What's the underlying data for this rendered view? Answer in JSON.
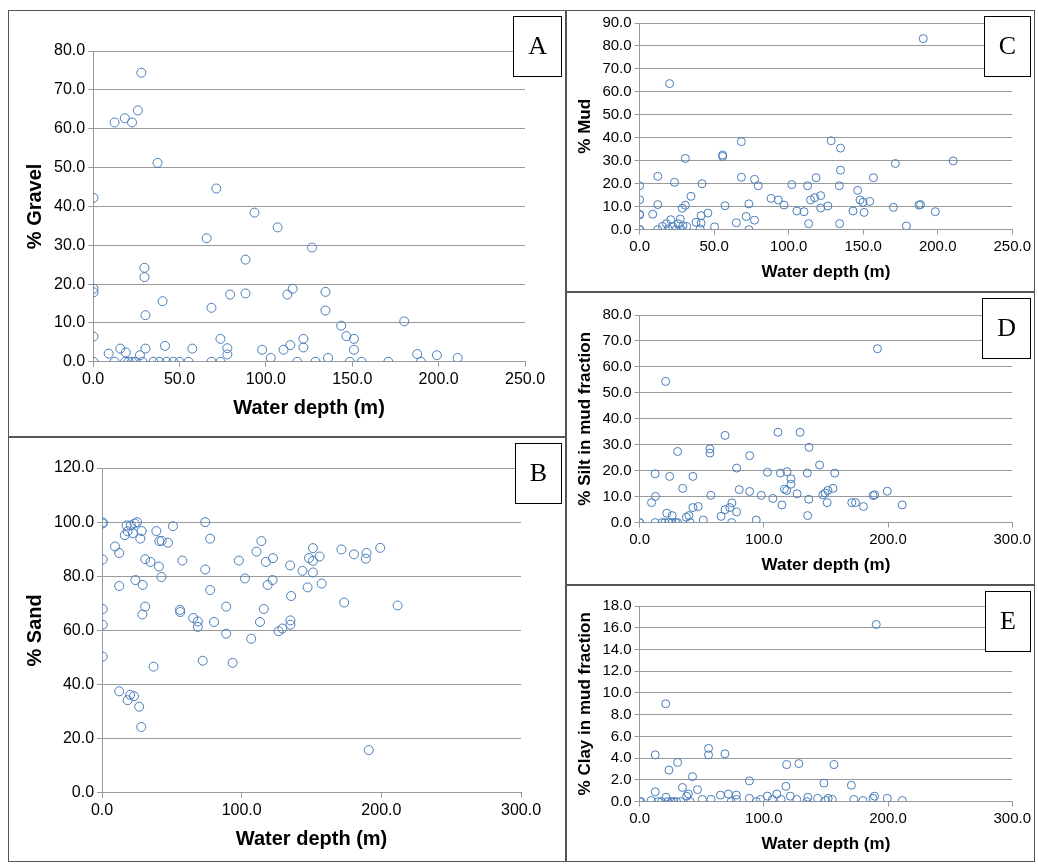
{
  "chart_data": [
    {
      "type": "scatter",
      "title": "A",
      "xlabel": "Water depth (m)",
      "ylabel": "% Gravel",
      "color": "#4a7ebb",
      "marker": "circle",
      "grid": "y",
      "xlim": [
        0,
        250
      ],
      "xticks": [
        {
          "value": 0,
          "label": "0.0"
        },
        {
          "value": 50,
          "label": "50.0"
        },
        {
          "value": 100,
          "label": "100.0"
        },
        {
          "value": 150,
          "label": "150.0"
        },
        {
          "value": 200,
          "label": "200.0"
        },
        {
          "value": 250,
          "label": "250.0"
        }
      ],
      "ylim": [
        0,
        80
      ],
      "yticks": [
        {
          "value": 0,
          "label": "0.0"
        },
        {
          "value": 10,
          "label": "10.0"
        },
        {
          "value": 20,
          "label": "20.0"
        },
        {
          "value": 30,
          "label": "30.0"
        },
        {
          "value": 40,
          "label": "40.0"
        },
        {
          "value": 50,
          "label": "50.0"
        },
        {
          "value": 60,
          "label": "60.0"
        },
        {
          "value": 70,
          "label": "70.0"
        },
        {
          "value": 80,
          "label": "80.0"
        }
      ],
      "x": [
        27.9,
        12.4,
        18.3,
        22.5,
        25.9,
        37.3,
        0.2,
        71.3,
        93.4,
        106.8,
        126.7,
        65.7,
        88.2,
        29.7,
        29.7,
        0.2,
        0.2,
        40.2,
        79.3,
        88.2,
        112.4,
        115.5,
        134.5,
        134.5,
        68.5,
        30.3,
        180.1,
        143.6,
        146.6,
        151.0,
        151.0,
        0.2,
        73.7,
        77.7,
        77.7,
        121.7,
        121.7,
        114.1,
        110.2,
        97.8,
        102.8,
        136.0,
        41.6,
        57.4,
        30.3,
        15.7,
        18.9,
        9.0,
        27.1,
        187.6,
        199.0,
        211.0,
        0.2,
        12.4,
        18.5,
        20.5,
        22.5,
        24.5,
        28.5,
        34.9,
        38.4,
        42.4,
        46.4,
        50.0,
        55.2,
        68.5,
        73.7,
        118.1,
        128.7,
        148.6,
        155.4,
        170.9,
        189.8
      ],
      "values": [
        74.4,
        61.6,
        62.7,
        61.6,
        64.7,
        51.2,
        42.2,
        44.6,
        38.4,
        34.6,
        29.4,
        31.8,
        26.3,
        24.2,
        21.8,
        18.8,
        17.9,
        15.6,
        17.3,
        17.6,
        17.3,
        18.8,
        18.0,
        13.2,
        13.9,
        12.0,
        10.4,
        9.3,
        6.6,
        5.9,
        3.1,
        6.5,
        5.9,
        3.5,
        1.9,
        5.9,
        3.7,
        4.3,
        3.1,
        3.1,
        1.0,
        1.0,
        4.1,
        3.4,
        3.4,
        3.4,
        2.4,
        2.1,
        1.7,
        2.0,
        1.7,
        1.0,
        0,
        0,
        0,
        0,
        0,
        0,
        0,
        0,
        0,
        0,
        0,
        0,
        0,
        0,
        0,
        0,
        0,
        0,
        0,
        0,
        0
      ]
    },
    {
      "type": "scatter",
      "title": "B",
      "xlabel": "Water depth (m)",
      "ylabel": "% Sand",
      "color": "#4a7ebb",
      "marker": "circle",
      "grid": "y",
      "xlim": [
        0,
        300
      ],
      "xticks": [
        {
          "value": 0,
          "label": "0.0"
        },
        {
          "value": 100,
          "label": "100.0"
        },
        {
          "value": 200,
          "label": "200.0"
        },
        {
          "value": 300,
          "label": "300.0"
        }
      ],
      "ylim": [
        0,
        120
      ],
      "yticks": [
        {
          "value": 0,
          "label": "0.0"
        },
        {
          "value": 20,
          "label": "20.0"
        },
        {
          "value": 40,
          "label": "40.0"
        },
        {
          "value": 60,
          "label": "60.0"
        },
        {
          "value": 80,
          "label": "80.0"
        },
        {
          "value": 100,
          "label": "100.0"
        },
        {
          "value": 120,
          "label": "120.0"
        }
      ],
      "x": [
        0.5,
        0.5,
        0.5,
        0.5,
        0.5,
        0.5,
        9.3,
        12.3,
        12.3,
        12.3,
        17.6,
        18.3,
        16.3,
        20.6,
        22.1,
        23.4,
        25.1,
        28.4,
        27.4,
        23.9,
        29.1,
        30.9,
        34.7,
        30.9,
        28.9,
        36.9,
        20.1,
        22.9,
        18.3,
        26.6,
        28.1,
        38.9,
        41.0,
        42.7,
        47.2,
        50.8,
        40.7,
        42.5,
        57.5,
        55.8,
        56.0,
        65.3,
        68.6,
        68.6,
        72.1,
        73.9,
        77.4,
        73.9,
        77.4,
        80.2,
        88.9,
        88.9,
        93.5,
        98.0,
        102.3,
        106.8,
        110.6,
        114.1,
        117.3,
        118.6,
        122.4,
        122.1,
        115.8,
        113.1,
        126.4,
        129.1,
        134.7,
        135.4,
        134.9,
        134.9,
        143.5,
        147.2,
        148.2,
        151.0,
        151.0,
        151.0,
        155.8,
        157.3,
        171.4,
        173.4,
        180.4,
        189.4,
        188.9,
        199.2,
        211.6,
        191.0
      ],
      "values": [
        99.9,
        99.5,
        86.2,
        67.9,
        62.1,
        50.3,
        91.0,
        88.6,
        76.4,
        37.5,
        98.8,
        96.6,
        95.2,
        98.8,
        95.9,
        99.5,
        100.0,
        96.7,
        93.9,
        78.6,
        76.8,
        86.3,
        85.3,
        68.8,
        65.9,
        46.6,
        36.2,
        35.7,
        34.2,
        31.8,
        24.3,
        96.7,
        93.0,
        93.1,
        92.4,
        98.5,
        83.6,
        79.7,
        85.8,
        67.6,
        66.8,
        64.6,
        63.3,
        61.3,
        48.8,
        100.0,
        93.9,
        82.5,
        74.9,
        63.1,
        68.8,
        58.8,
        48.0,
        85.8,
        79.2,
        56.9,
        89.1,
        93.0,
        85.3,
        76.8,
        86.7,
        78.6,
        67.9,
        63.1,
        59.7,
        60.7,
        84.0,
        72.7,
        63.7,
        62.1,
        82.0,
        75.9,
        86.7,
        90.4,
        85.7,
        81.4,
        87.3,
        77.3,
        89.9,
        70.3,
        88.1,
        88.6,
        86.5,
        90.5,
        69.2,
        15.8
      ]
    },
    {
      "type": "scatter",
      "title": "C",
      "xlabel": "Water depth (m)",
      "ylabel": "% Mud",
      "color": "#4a7ebb",
      "marker": "circle",
      "grid": "y",
      "xlim": [
        0,
        250
      ],
      "xticks": [
        {
          "value": 0,
          "label": "0.0"
        },
        {
          "value": 50,
          "label": "50.0"
        },
        {
          "value": 100,
          "label": "100.0"
        },
        {
          "value": 150,
          "label": "150.0"
        },
        {
          "value": 200,
          "label": "200.0"
        },
        {
          "value": 250,
          "label": "250.0"
        }
      ],
      "ylim": [
        0,
        90
      ],
      "yticks": [
        {
          "value": 0,
          "label": "0.0"
        },
        {
          "value": 10,
          "label": "10.0"
        },
        {
          "value": 20,
          "label": "20.0"
        },
        {
          "value": 30,
          "label": "30.0"
        },
        {
          "value": 40,
          "label": "40.0"
        },
        {
          "value": 50,
          "label": "50.0"
        },
        {
          "value": 60,
          "label": "60.0"
        },
        {
          "value": 70,
          "label": "70.0"
        },
        {
          "value": 80,
          "label": "80.0"
        },
        {
          "value": 90,
          "label": "90.0"
        }
      ],
      "x": [
        0,
        0,
        0,
        0,
        0,
        0,
        8.8,
        12.2,
        12.2,
        12.2,
        20.1,
        23.4,
        15.3,
        18.0,
        19.1,
        20.9,
        22.1,
        24.4,
        25.9,
        27.3,
        28.2,
        29.1,
        31.6,
        28.6,
        30.7,
        30.7,
        34.5,
        37.9,
        40.6,
        41.3,
        41.3,
        41.9,
        45.8,
        50.3,
        55.7,
        55.7,
        57.3,
        64.9,
        68.3,
        68.3,
        71.5,
        73.3,
        73.3,
        77.1,
        79.6,
        77.1,
        88.2,
        93.1,
        96.9,
        102.1,
        105.5,
        110.3,
        112.7,
        113.4,
        114.7,
        117.5,
        118.4,
        121.5,
        121.5,
        126.3,
        128.5,
        134.0,
        134.8,
        134.8,
        134.2,
        143.2,
        146.3,
        147.9,
        149.9,
        150.6,
        154.4,
        156.9,
        170.3,
        171.6,
        179.0,
        187.4,
        188.5,
        190.3,
        198.4,
        210.4
      ],
      "values": [
        19.1,
        13.0,
        6.7,
        6.4,
        0,
        0,
        6.7,
        23.2,
        10.9,
        0,
        63.6,
        20.6,
        1.4,
        2.6,
        0.3,
        4.3,
        1.4,
        0,
        2.5,
        4.6,
        0,
        1.7,
        1.4,
        9.3,
        10.6,
        31.0,
        14.5,
        3.2,
        0.3,
        2.8,
        6.1,
        20.0,
        7.2,
        1.2,
        32.5,
        31.9,
        10.4,
        3.0,
        38.3,
        22.8,
        5.7,
        11.2,
        0,
        21.9,
        19.1,
        4.1,
        13.6,
        12.9,
        10.7,
        19.6,
        8.1,
        7.8,
        19.1,
        2.6,
        12.9,
        13.9,
        22.6,
        14.8,
        9.4,
        10.3,
        38.7,
        19.1,
        35.5,
        25.9,
        2.6,
        8.1,
        17.1,
        12.9,
        11.9,
        7.5,
        12.3,
        22.6,
        9.7,
        28.8,
        1.6,
        10.7,
        10.9,
        83.2,
        7.8,
        29.9
      ]
    },
    {
      "type": "scatter",
      "title": "D",
      "xlabel": "Water depth (m)",
      "ylabel": "% Silt in mud fraction",
      "color": "#4a7ebb",
      "marker": "circle",
      "grid": "y",
      "xlim": [
        0,
        300
      ],
      "xticks": [
        {
          "value": 0,
          "label": "0.0"
        },
        {
          "value": 100,
          "label": "100.0"
        },
        {
          "value": 200,
          "label": "200.0"
        },
        {
          "value": 300,
          "label": "300.0"
        }
      ],
      "ylim": [
        0,
        80
      ],
      "yticks": [
        {
          "value": 0,
          "label": "0.0"
        },
        {
          "value": 10,
          "label": "10.0"
        },
        {
          "value": 20,
          "label": "20.0"
        },
        {
          "value": 30,
          "label": "30.0"
        },
        {
          "value": 40,
          "label": "40.0"
        },
        {
          "value": 50,
          "label": "50.0"
        },
        {
          "value": 60,
          "label": "60.0"
        },
        {
          "value": 70,
          "label": "70.0"
        },
        {
          "value": 80,
          "label": "80.0"
        }
      ],
      "x": [
        0,
        0,
        9.6,
        12.5,
        12.8,
        12.5,
        21.0,
        24.2,
        21.9,
        18.1,
        20.4,
        23.3,
        26.2,
        29.2,
        30.6,
        26.2,
        30.6,
        34.7,
        37.6,
        39.7,
        40.8,
        42.9,
        42.9,
        47.2,
        51.3,
        56.6,
        56.6,
        57.4,
        65.6,
        68.8,
        68.8,
        72.6,
        74.3,
        74.1,
        78.1,
        78.1,
        80.2,
        88.6,
        88.6,
        93.9,
        98.0,
        102.9,
        107.3,
        111.4,
        113.4,
        114.6,
        116.6,
        118.4,
        118.7,
        121.9,
        121.9,
        126.8,
        129.2,
        135.0,
        136.4,
        136.2,
        135.3,
        144.9,
        147.5,
        149.3,
        151.0,
        151.6,
        155.7,
        157.1,
        170.8,
        173.8,
        180.2,
        188.0,
        189.2,
        191.5,
        199.4,
        211.4
      ],
      "values": [
        0,
        0,
        7.7,
        18.8,
        10.1,
        0,
        54.4,
        17.8,
        3.6,
        0,
        0,
        0,
        0,
        0,
        0,
        2.7,
        27.4,
        13.2,
        2.1,
        2.7,
        0,
        17.8,
        5.8,
        6.2,
        1.0,
        28.4,
        26.8,
        10.5,
        2.4,
        33.6,
        5.0,
        5.8,
        7.6,
        0,
        21.0,
        4.1,
        12.7,
        25.8,
        12.0,
        1.0,
        10.5,
        19.4,
        9.3,
        34.8,
        19.1,
        6.8,
        12.9,
        12.4,
        19.6,
        16.9,
        14.8,
        11.1,
        34.8,
        19.1,
        29.0,
        9.0,
        2.7,
        22.2,
        10.7,
        11.4,
        7.7,
        12.4,
        13.2,
        19.1,
        7.7,
        7.7,
        6.2,
        10.4,
        10.7,
        67.0,
        12.1,
        6.8
      ]
    },
    {
      "type": "scatter",
      "title": "E",
      "xlabel": "Water depth (m)",
      "ylabel": "% Clay in mud fraction",
      "color": "#4a7ebb",
      "marker": "circle",
      "grid": "y",
      "xlim": [
        0,
        300
      ],
      "xticks": [
        {
          "value": 0,
          "label": "0.0"
        },
        {
          "value": 100,
          "label": "100.0"
        },
        {
          "value": 200,
          "label": "200.0"
        },
        {
          "value": 300,
          "label": "300.0"
        }
      ],
      "ylim": [
        0,
        18
      ],
      "yticks": [
        {
          "value": 0,
          "label": "0.0"
        },
        {
          "value": 2,
          "label": "2.0"
        },
        {
          "value": 4,
          "label": "4.0"
        },
        {
          "value": 6,
          "label": "6.0"
        },
        {
          "value": 8,
          "label": "8.0"
        },
        {
          "value": 10,
          "label": "10.0"
        },
        {
          "value": 12,
          "label": "12.0"
        },
        {
          "value": 14,
          "label": "14.0"
        },
        {
          "value": 16,
          "label": "16.0"
        },
        {
          "value": 18,
          "label": "18.0"
        }
      ],
      "x": [
        0,
        1.1,
        9.3,
        12.6,
        12.6,
        21.0,
        23.6,
        30.6,
        34.5,
        42.6,
        46.6,
        37.9,
        39.3,
        14.9,
        17.7,
        21.3,
        22.7,
        25.5,
        27.5,
        29.7,
        33.1,
        40.7,
        50.5,
        55.5,
        55.5,
        57.5,
        65.1,
        68.7,
        71.5,
        73.7,
        77.9,
        77.9,
        88.4,
        88.4,
        94.0,
        97.3,
        102.9,
        106.9,
        110.5,
        113.9,
        117.8,
        118.4,
        121.4,
        126.5,
        128.2,
        134.7,
        135.5,
        143.3,
        148.4,
        149.8,
        151.8,
        156.5,
        155.1,
        170.5,
        172.5,
        179.8,
        187.9,
        189.1,
        190.5,
        199.4,
        211.5
      ],
      "values": [
        0,
        0,
        0.1,
        4.3,
        0.9,
        9.0,
        2.9,
        3.6,
        1.3,
        2.3,
        1.1,
        0.5,
        0.7,
        0,
        0,
        0.4,
        0,
        0,
        0,
        0,
        0,
        0,
        0.2,
        4.9,
        4.3,
        0.2,
        0.6,
        4.4,
        0.7,
        0,
        0.6,
        0.2,
        1.9,
        0.3,
        0,
        0.2,
        0.5,
        0.2,
        0.7,
        0.2,
        1.4,
        3.4,
        0.5,
        0.2,
        3.5,
        0,
        0.4,
        0.3,
        1.7,
        0.1,
        0.3,
        3.4,
        0.2,
        1.5,
        0.2,
        0.1,
        0.3,
        0.5,
        16.3,
        0.3,
        0.1
      ]
    }
  ]
}
